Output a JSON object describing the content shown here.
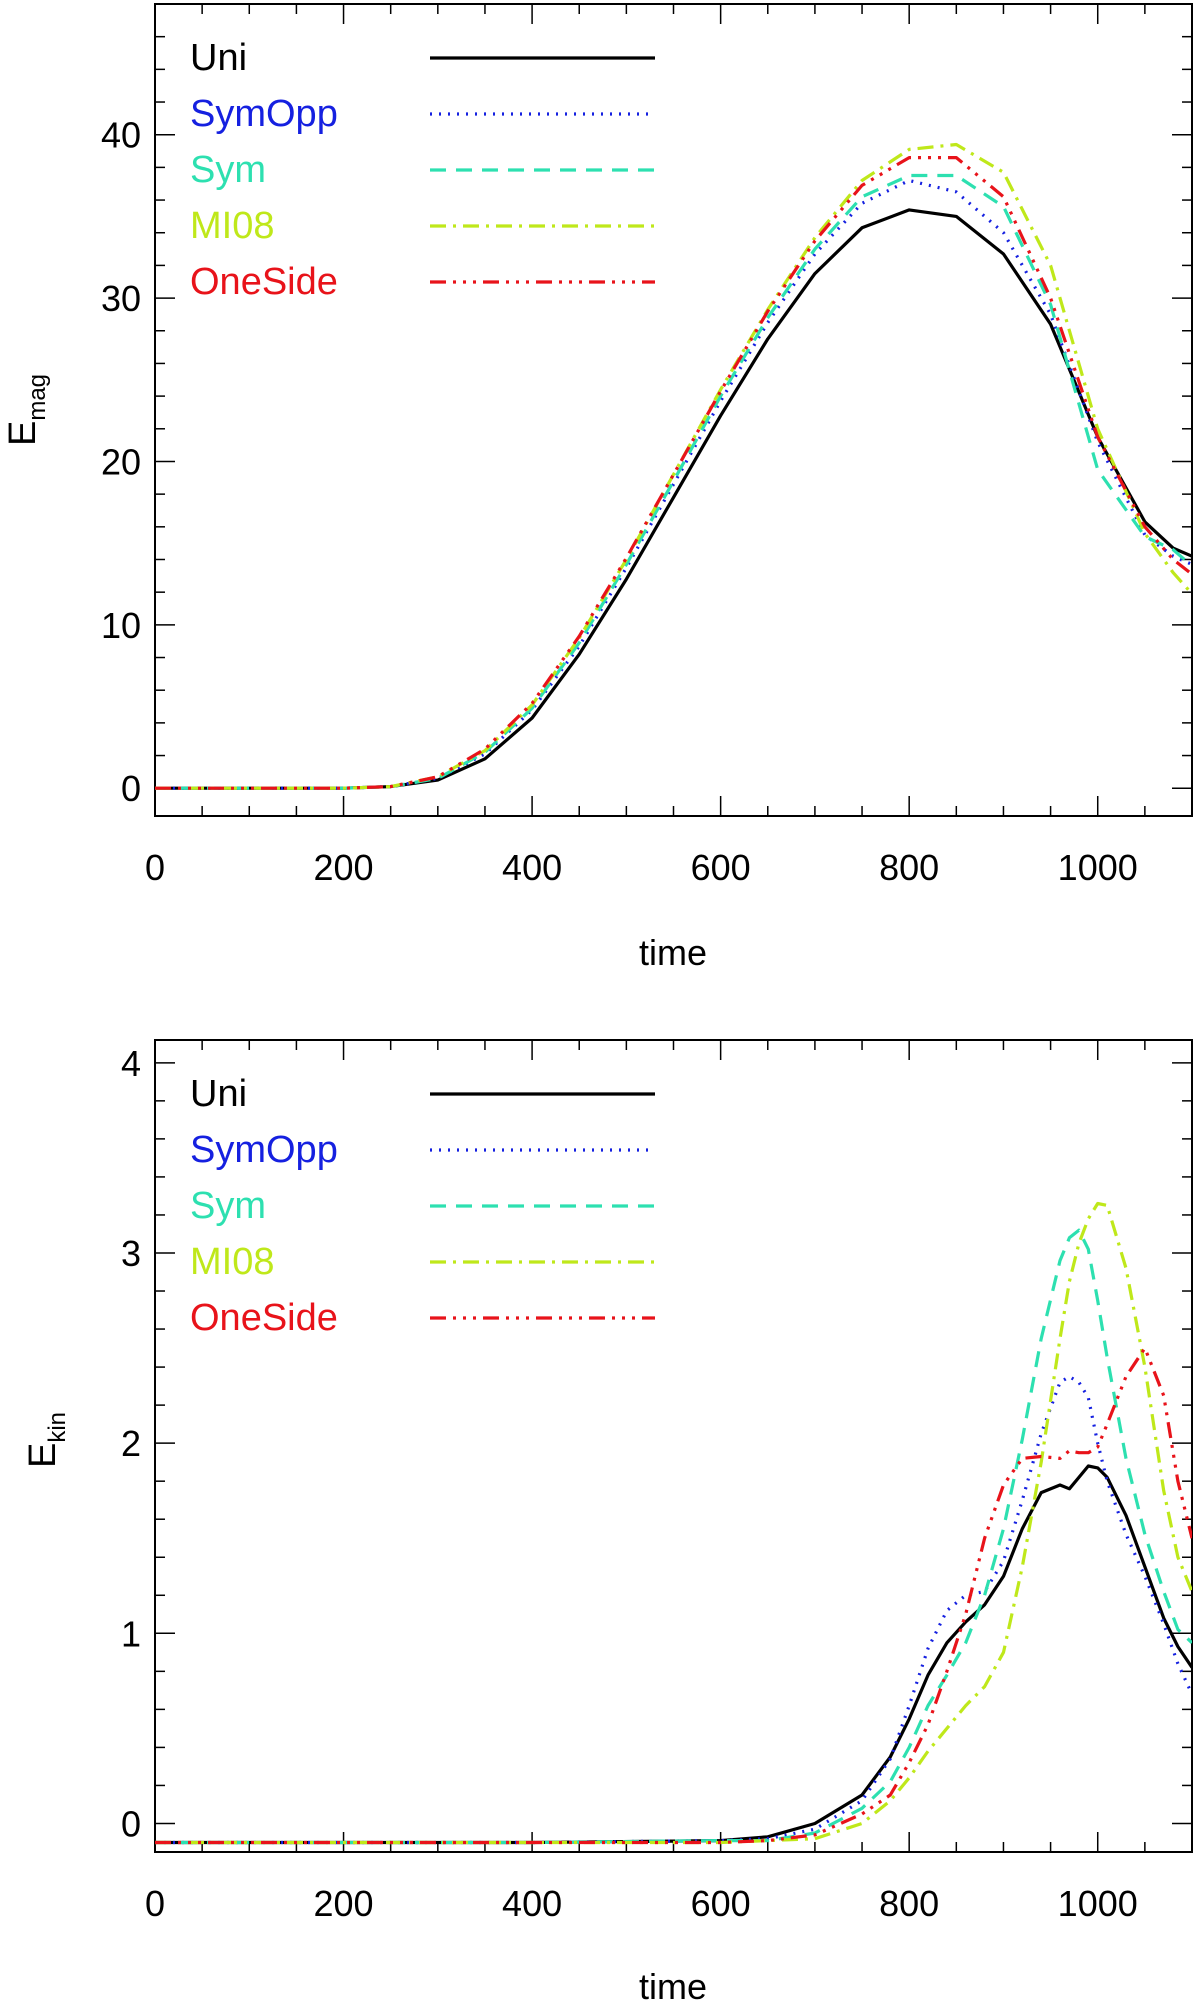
{
  "chart_data": [
    {
      "type": "line",
      "xlabel": "time",
      "ylabel": "E",
      "ylabel_sub": "mag",
      "xlim": [
        0,
        1100
      ],
      "ylim": [
        -1.7,
        48
      ],
      "xticks": [
        0,
        200,
        400,
        600,
        800,
        1000
      ],
      "xtick_labels": [
        "0",
        "200",
        "400",
        "600",
        "800",
        "1000"
      ],
      "yticks": [
        0,
        10,
        20,
        30,
        40
      ],
      "ytick_labels": [
        "0",
        "10",
        "20",
        "30",
        "40"
      ],
      "grid": false,
      "legend_position": "top-left",
      "series": [
        {
          "name": "Uni",
          "color": "#000000",
          "dash": "solid",
          "x": [
            0,
            100,
            200,
            250,
            300,
            350,
            400,
            450,
            500,
            550,
            600,
            650,
            700,
            750,
            800,
            850,
            900,
            950,
            1000,
            1050,
            1080,
            1100
          ],
          "y": [
            0,
            0,
            0,
            0.1,
            0.5,
            1.8,
            4.3,
            8.2,
            12.8,
            17.8,
            22.8,
            27.5,
            31.5,
            34.3,
            35.4,
            35.0,
            32.7,
            28.4,
            21.5,
            16.3,
            14.7,
            14.2
          ]
        },
        {
          "name": "SymOpp",
          "color": "#1520e0",
          "dash": "dot",
          "x": [
            0,
            100,
            200,
            250,
            300,
            350,
            400,
            450,
            500,
            550,
            600,
            650,
            700,
            750,
            800,
            850,
            900,
            950,
            1000,
            1050,
            1080,
            1100
          ],
          "y": [
            0,
            0,
            0,
            0.1,
            0.6,
            2.1,
            4.8,
            8.7,
            13.5,
            18.6,
            23.7,
            28.5,
            32.7,
            35.8,
            37.2,
            36.5,
            34.0,
            29.0,
            21.2,
            15.5,
            14.2,
            13.7
          ]
        },
        {
          "name": "Sym",
          "color": "#2de0b0",
          "dash": "dash",
          "x": [
            0,
            100,
            200,
            250,
            300,
            350,
            400,
            450,
            500,
            550,
            600,
            650,
            700,
            750,
            800,
            850,
            900,
            950,
            1000,
            1050,
            1080,
            1100
          ],
          "y": [
            0,
            0,
            0,
            0.1,
            0.6,
            2.2,
            4.9,
            8.9,
            13.7,
            18.8,
            24.0,
            28.8,
            33.0,
            36.2,
            37.5,
            37.5,
            35.6,
            29.6,
            19.5,
            15.4,
            14.6,
            13.6
          ]
        },
        {
          "name": "MI08",
          "color": "#bfe81a",
          "dash": "dashdot",
          "x": [
            0,
            100,
            200,
            250,
            300,
            350,
            400,
            450,
            500,
            550,
            600,
            650,
            700,
            750,
            800,
            850,
            900,
            950,
            1000,
            1050,
            1080,
            1100
          ],
          "y": [
            0,
            0,
            0,
            0.1,
            0.7,
            2.3,
            5.1,
            9.2,
            14.0,
            19.2,
            24.4,
            29.3,
            33.7,
            37.2,
            39.1,
            39.4,
            37.7,
            32.0,
            22.0,
            15.6,
            13.2,
            11.9
          ]
        },
        {
          "name": "OneSide",
          "color": "#e8131a",
          "dash": "dashdotdotdot",
          "x": [
            0,
            100,
            200,
            250,
            300,
            350,
            400,
            450,
            500,
            550,
            600,
            650,
            700,
            750,
            800,
            850,
            900,
            950,
            1000,
            1050,
            1080,
            1100
          ],
          "y": [
            0,
            0,
            0,
            0.1,
            0.7,
            2.4,
            5.2,
            9.3,
            14.1,
            19.2,
            24.3,
            29.2,
            33.5,
            36.9,
            38.6,
            38.6,
            36.2,
            30.0,
            21.5,
            16.0,
            14.0,
            13.1
          ]
        }
      ]
    },
    {
      "type": "line",
      "xlabel": "time",
      "ylabel": "E",
      "ylabel_sub": "kin",
      "xlim": [
        0,
        1100
      ],
      "ylim": [
        -0.15,
        4.12
      ],
      "xticks": [
        0,
        200,
        400,
        600,
        800,
        1000
      ],
      "xtick_labels": [
        "0",
        "200",
        "400",
        "600",
        "800",
        "1000"
      ],
      "yticks": [
        0,
        1,
        2,
        3,
        4
      ],
      "ytick_labels": [
        "0",
        "1",
        "2",
        "3",
        "4"
      ],
      "grid": false,
      "legend_position": "top-left",
      "series": [
        {
          "name": "Uni",
          "color": "#000000",
          "dash": "solid",
          "x": [
            0,
            400,
            600,
            650,
            700,
            750,
            780,
            800,
            820,
            840,
            860,
            880,
            900,
            920,
            940,
            960,
            970,
            980,
            990,
            1000,
            1010,
            1030,
            1050,
            1070,
            1085,
            1100
          ],
          "y": [
            -0.1,
            -0.1,
            -0.09,
            -0.07,
            0.0,
            0.15,
            0.35,
            0.55,
            0.78,
            0.95,
            1.06,
            1.15,
            1.3,
            1.55,
            1.74,
            1.78,
            1.76,
            1.82,
            1.88,
            1.87,
            1.82,
            1.62,
            1.35,
            1.08,
            0.93,
            0.82
          ]
        },
        {
          "name": "SymOpp",
          "color": "#1520e0",
          "dash": "dot",
          "x": [
            0,
            400,
            600,
            650,
            700,
            750,
            780,
            800,
            820,
            840,
            860,
            880,
            900,
            920,
            940,
            960,
            970,
            980,
            990,
            1000,
            1010,
            1030,
            1050,
            1070,
            1085,
            1100
          ],
          "y": [
            -0.1,
            -0.1,
            -0.09,
            -0.08,
            -0.03,
            0.12,
            0.34,
            0.62,
            0.92,
            1.12,
            1.2,
            1.22,
            1.38,
            1.7,
            2.05,
            2.32,
            2.35,
            2.32,
            2.24,
            2.0,
            1.8,
            1.52,
            1.3,
            1.05,
            0.84,
            0.68
          ]
        },
        {
          "name": "Sym",
          "color": "#2de0b0",
          "dash": "dash",
          "x": [
            0,
            400,
            600,
            650,
            700,
            750,
            780,
            800,
            820,
            840,
            860,
            880,
            900,
            920,
            940,
            960,
            970,
            980,
            990,
            1000,
            1010,
            1030,
            1050,
            1070,
            1085,
            1100
          ],
          "y": [
            -0.1,
            -0.1,
            -0.09,
            -0.09,
            -0.05,
            0.08,
            0.22,
            0.4,
            0.62,
            0.78,
            0.95,
            1.2,
            1.55,
            2.02,
            2.55,
            2.96,
            3.08,
            3.12,
            3.02,
            2.75,
            2.45,
            1.92,
            1.52,
            1.22,
            1.02,
            0.95
          ]
        },
        {
          "name": "MI08",
          "color": "#bfe81a",
          "dash": "dashdot",
          "x": [
            0,
            400,
            600,
            650,
            700,
            750,
            780,
            800,
            820,
            840,
            860,
            880,
            900,
            920,
            940,
            960,
            970,
            980,
            990,
            1000,
            1010,
            1030,
            1050,
            1070,
            1085,
            1100
          ],
          "y": [
            -0.1,
            -0.1,
            -0.1,
            -0.09,
            -0.08,
            0.0,
            0.12,
            0.24,
            0.38,
            0.5,
            0.62,
            0.72,
            0.9,
            1.35,
            1.9,
            2.55,
            2.85,
            3.05,
            3.18,
            3.26,
            3.25,
            2.92,
            2.4,
            1.75,
            1.4,
            1.22
          ]
        },
        {
          "name": "OneSide",
          "color": "#e8131a",
          "dash": "dashdotdotdot",
          "x": [
            0,
            400,
            600,
            650,
            700,
            750,
            780,
            800,
            820,
            840,
            860,
            880,
            900,
            920,
            940,
            960,
            970,
            980,
            990,
            1000,
            1010,
            1030,
            1050,
            1070,
            1085,
            1100
          ],
          "y": [
            -0.1,
            -0.1,
            -0.1,
            -0.09,
            -0.06,
            0.05,
            0.15,
            0.32,
            0.52,
            0.8,
            1.1,
            1.5,
            1.78,
            1.92,
            1.93,
            1.92,
            1.96,
            1.95,
            1.95,
            1.98,
            2.1,
            2.35,
            2.5,
            2.25,
            1.8,
            1.5
          ]
        }
      ]
    }
  ]
}
